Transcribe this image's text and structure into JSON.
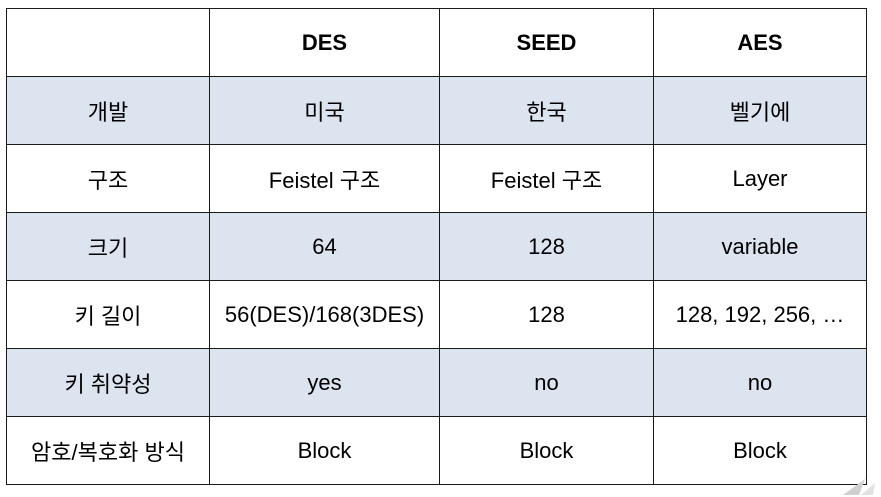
{
  "header": {
    "corner": "",
    "col1": "DES",
    "col2": "SEED",
    "col3": "AES"
  },
  "rows": [
    {
      "label": "개발",
      "des": "미국",
      "seed": "한국",
      "aes": "벨기에"
    },
    {
      "label": "구조",
      "des": "Feistel 구조",
      "seed": "Feistel 구조",
      "aes": "Layer"
    },
    {
      "label": "크기",
      "des": "64",
      "seed": "128",
      "aes": "variable"
    },
    {
      "label": "키 길이",
      "des": "56(DES)/168(3DES)",
      "seed": "128",
      "aes": "128, 192, 256, …"
    },
    {
      "label": "키 취약성",
      "des": "yes",
      "seed": "no",
      "aes": "no"
    },
    {
      "label": "암호/복호화 방식",
      "des": "Block",
      "seed": "Block",
      "aes": "Block"
    }
  ],
  "colors": {
    "shade": "#dce4f0",
    "border": "#1a1a1a"
  }
}
